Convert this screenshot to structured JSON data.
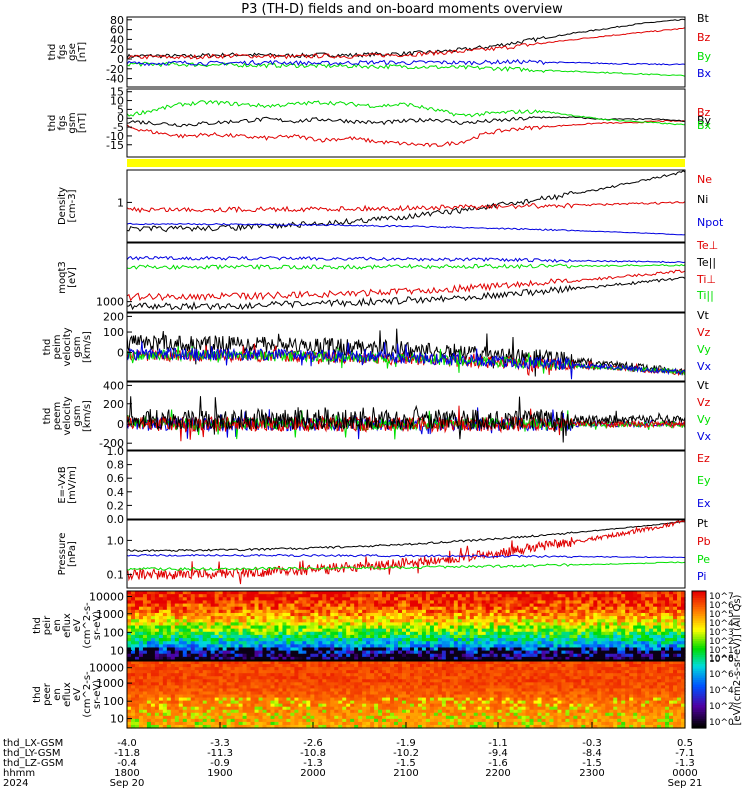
{
  "title": "P3 (TH-D) fields and on-board moments overview",
  "colors": {
    "black": "#000000",
    "red": "#e00000",
    "green": "#00e000",
    "blue": "#0000e0",
    "yellow": "#ffff00"
  },
  "chart_data": [
    {
      "type": "line",
      "ylabel": [
        "thd",
        "fgs",
        "gse",
        "[nT]"
      ],
      "ytick_labels": [
        "80",
        "60",
        "40",
        "20",
        "0",
        "-20",
        "-40"
      ],
      "ylim": [
        -45,
        85
      ],
      "series": [
        {
          "name": "Bt",
          "color": "black",
          "values": [
            12,
            13,
            12,
            14,
            15,
            14,
            13,
            15,
            14,
            16,
            17,
            20,
            24,
            30,
            38,
            46,
            55,
            62,
            70,
            76,
            80
          ]
        },
        {
          "name": "Bz",
          "color": "red",
          "values": [
            10,
            11,
            10,
            12,
            13,
            12,
            11,
            13,
            12,
            14,
            15,
            18,
            21,
            25,
            31,
            37,
            43,
            49,
            54,
            59,
            64
          ]
        },
        {
          "name": "By",
          "color": "green",
          "values": [
            -2,
            -3,
            -3,
            -4,
            -4,
            -5,
            -5,
            -6,
            -6,
            -7,
            -7,
            -8,
            -9,
            -10,
            -12,
            -14,
            -16,
            -18,
            -20,
            -22,
            -24
          ]
        },
        {
          "name": "Bx",
          "color": "blue",
          "values": [
            -1,
            -1,
            0,
            -1,
            0,
            1,
            0,
            -1,
            0,
            1,
            0,
            1,
            0,
            1,
            2,
            1,
            0,
            -1,
            -2,
            -3,
            -3
          ]
        }
      ]
    },
    {
      "type": "line",
      "ylabel": [
        "thd",
        "fgs",
        "gsm",
        "[nT]"
      ],
      "ytick_labels": [
        "15",
        "10",
        "5",
        "0",
        "-5",
        "-10",
        "-15"
      ],
      "ylim": [
        -19,
        17
      ],
      "series": [
        {
          "name": "Bz",
          "color": "red",
          "values": [
            -3,
            -6,
            -8,
            -7,
            -8,
            -9,
            -8,
            -10,
            -9,
            -11,
            -12,
            -13,
            -11,
            -6,
            -4,
            -3,
            -2,
            -1,
            -1,
            0,
            0
          ]
        },
        {
          "name": "By",
          "color": "black",
          "values": [
            0,
            -1,
            -2,
            -1,
            0,
            1,
            0,
            1,
            0,
            -1,
            0,
            1,
            -1,
            0,
            1,
            2,
            2,
            1,
            1,
            1,
            0
          ]
        },
        {
          "name": "Bx",
          "color": "green",
          "values": [
            3,
            6,
            9,
            10,
            9,
            8,
            9,
            10,
            9,
            8,
            9,
            6,
            3,
            4,
            5,
            5,
            3,
            1,
            0,
            -1,
            -2
          ]
        }
      ]
    },
    {
      "type": "line",
      "ylabel": [
        "Density",
        "[cm-3]"
      ],
      "ytick_labels": [
        "1"
      ],
      "series": [
        {
          "name": "Ne",
          "color": "red"
        },
        {
          "name": "Ni",
          "color": "black"
        },
        {
          "name": "Npot",
          "color": "blue"
        }
      ]
    },
    {
      "type": "line",
      "ylabel": [
        "moqt3",
        "[eV]"
      ],
      "ytick_labels": [
        "1000"
      ],
      "series": [
        {
          "name": "Te⊥",
          "color": "red"
        },
        {
          "name": "Te||",
          "color": "black"
        },
        {
          "name": "Ti⊥",
          "color": "red"
        },
        {
          "name": "Ti||",
          "color": "green"
        }
      ]
    },
    {
      "type": "line",
      "ylabel": [
        "thd",
        "peim",
        "velocity",
        "gsm",
        "[km/s]"
      ],
      "ytick_labels": [
        "200",
        "100",
        "0"
      ],
      "ylim": [
        -60,
        210
      ],
      "series": [
        {
          "name": "Vt",
          "color": "black"
        },
        {
          "name": "Vz",
          "color": "red"
        },
        {
          "name": "Vy",
          "color": "green"
        },
        {
          "name": "Vx",
          "color": "blue"
        }
      ]
    },
    {
      "type": "line",
      "ylabel": [
        "thd",
        "peem",
        "velocity",
        "gsm",
        "[km/s]"
      ],
      "ytick_labels": [
        "400",
        "200",
        "0",
        "-200"
      ],
      "ylim": [
        -250,
        430
      ],
      "series": [
        {
          "name": "Vt",
          "color": "black"
        },
        {
          "name": "Vz",
          "color": "red"
        },
        {
          "name": "Vy",
          "color": "green"
        },
        {
          "name": "Vx",
          "color": "blue"
        }
      ]
    },
    {
      "type": "line",
      "ylabel": [
        "E=-VxB",
        "[mV/m]"
      ],
      "ytick_labels": [
        "1.0",
        "0.8",
        "0.6",
        "0.4",
        "0.2",
        "0.0"
      ],
      "ylim": [
        0,
        1
      ],
      "series": [
        {
          "name": "Ez",
          "color": "red"
        },
        {
          "name": "Ey",
          "color": "green"
        },
        {
          "name": "Ex",
          "color": "blue"
        }
      ]
    },
    {
      "type": "line",
      "ylabel": [
        "Pressure",
        "[nPa]"
      ],
      "ytick_labels": [
        "1.0",
        "0.1"
      ],
      "series": [
        {
          "name": "Pt",
          "color": "black"
        },
        {
          "name": "Pb",
          "color": "red"
        },
        {
          "name": "Pe",
          "color": "green"
        },
        {
          "name": "Pi",
          "color": "blue"
        }
      ]
    },
    {
      "type": "heatmap",
      "ylabel": [
        "thd",
        "peir",
        "en",
        "eflux",
        "eV",
        "(cm^2-s-",
        "sr-eV)"
      ],
      "ytick_labels": [
        "10000",
        "1000",
        "100",
        "10"
      ]
    },
    {
      "type": "heatmap",
      "ylabel": [
        "thd",
        "peer",
        "en",
        "eflux",
        "eV",
        "(cm^2-s-",
        "sr-eV)"
      ],
      "ytick_labels": [
        "10000",
        "1000",
        "100",
        "10"
      ]
    }
  ],
  "colorbar": {
    "label": "[eV/(cm2-s-sr-eV)] (All Qs)",
    "tick_labels": [
      "10^7",
      "10^6",
      "10^5",
      "10^4",
      "10^3",
      "10^2",
      "10^1",
      "10^0",
      "10^8",
      "10^6",
      "10^4",
      "10^2",
      "10^0"
    ]
  },
  "x_axis": {
    "rows": [
      {
        "label": "thd_LX-GSM",
        "values": [
          "-4.0",
          "-3.3",
          "-2.6",
          "-1.9",
          "-1.1",
          "-0.3",
          "0.5"
        ]
      },
      {
        "label": "thd_LY-GSM",
        "values": [
          "-11.8",
          "-11.3",
          "-10.8",
          "-10.2",
          "-9.4",
          "-8.4",
          "-7.1"
        ]
      },
      {
        "label": "thd_LZ-GSM",
        "values": [
          "-0.4",
          "-0.9",
          "-1.3",
          "-1.5",
          "-1.6",
          "-1.5",
          "-1.3"
        ]
      },
      {
        "label": "hhmm",
        "values": [
          "1800",
          "1900",
          "2000",
          "2100",
          "2200",
          "2300",
          "0000"
        ]
      },
      {
        "label": "2024",
        "values": [
          "Sep 20",
          "",
          "",
          "",
          "",
          "",
          "Sep 21"
        ]
      }
    ]
  }
}
